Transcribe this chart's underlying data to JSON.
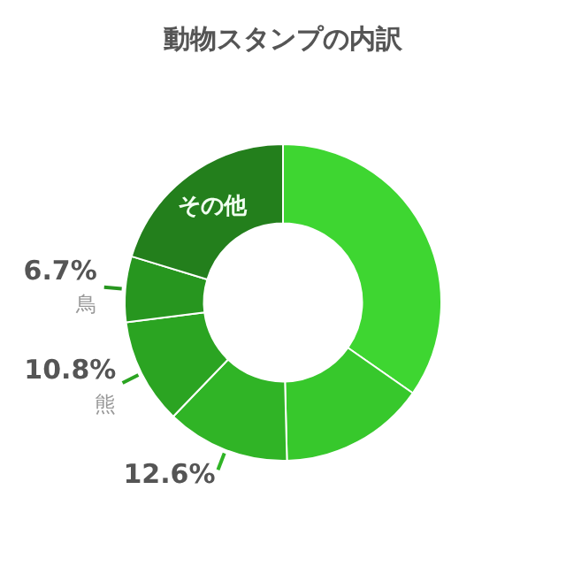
{
  "chart_data": {
    "type": "donut",
    "title": "動物スタンプの内訳",
    "categories": [
      null,
      null,
      null,
      "熊",
      "鳥",
      "その他"
    ],
    "values": [
      34.7,
      14.9,
      12.6,
      10.8,
      6.7,
      20.3
    ],
    "colors": [
      "#3ed631",
      "#37c82c",
      "#30b426",
      "#2ba422",
      "#27961f",
      "#237f1c"
    ],
    "value_labels": [
      null,
      null,
      "12.6%",
      "10.8%",
      "6.7%",
      null
    ],
    "legend": false
  }
}
